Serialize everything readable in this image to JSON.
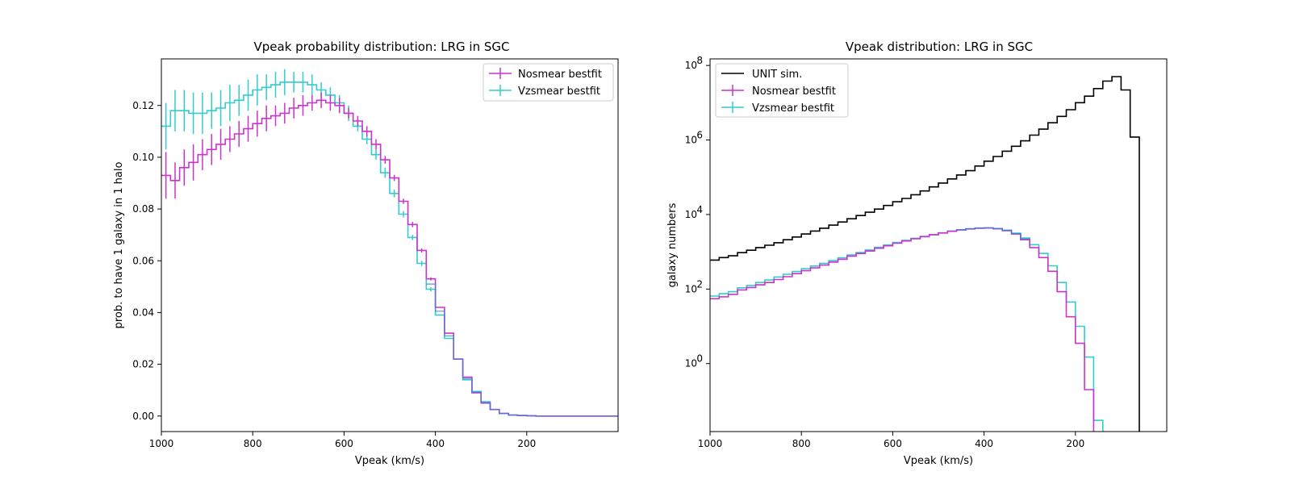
{
  "colors": {
    "nosmear": "#cc33cc",
    "vzsmear": "#33cccc",
    "unit": "#000000",
    "overlap": "#3d7fd6"
  },
  "chart_data": [
    {
      "type": "line",
      "title": "Vpeak probability distribution: LRG in SGC",
      "xlabel": "Vpeak (km/s)",
      "ylabel": "prob. to have 1 galaxy in 1 halo",
      "xlim": [
        1000,
        0
      ],
      "ylim": [
        -0.006,
        0.138
      ],
      "xticks": [
        1000,
        800,
        600,
        400,
        200
      ],
      "yticks": [
        0.0,
        0.02,
        0.04,
        0.06,
        0.08,
        0.1,
        0.12
      ],
      "ytick_labels": [
        "0.00",
        "0.02",
        "0.04",
        "0.06",
        "0.08",
        "0.10",
        "0.12"
      ],
      "legend": {
        "position": "top-right",
        "entries": [
          "Nosmear bestfit",
          "Vzsmear bestfit"
        ]
      },
      "grid": false,
      "x": [
        1000,
        980,
        960,
        940,
        920,
        900,
        880,
        860,
        840,
        820,
        800,
        780,
        760,
        740,
        720,
        700,
        680,
        660,
        640,
        620,
        600,
        580,
        560,
        540,
        520,
        500,
        480,
        460,
        440,
        420,
        400,
        380,
        360,
        340,
        320,
        300,
        280,
        260,
        240,
        220,
        200,
        180,
        160,
        140,
        120,
        100,
        80,
        60,
        40,
        20
      ],
      "series": [
        {
          "name": "Nosmear bestfit",
          "values": [
            0.093,
            0.091,
            0.096,
            0.098,
            0.101,
            0.103,
            0.105,
            0.107,
            0.109,
            0.111,
            0.113,
            0.115,
            0.116,
            0.117,
            0.119,
            0.12,
            0.121,
            0.122,
            0.121,
            0.12,
            0.117,
            0.114,
            0.11,
            0.105,
            0.099,
            0.092,
            0.083,
            0.074,
            0.064,
            0.053,
            0.042,
            0.032,
            0.022,
            0.015,
            0.009,
            0.005,
            0.0025,
            0.001,
            0.0004,
            0.0002,
            0.0001,
            0,
            0,
            0,
            0,
            0,
            0,
            0,
            0,
            0
          ],
          "errors": [
            0.009,
            0.007,
            0.007,
            0.007,
            0.006,
            0.006,
            0.006,
            0.005,
            0.005,
            0.005,
            0.005,
            0.005,
            0.004,
            0.004,
            0.004,
            0.004,
            0.003,
            0.003,
            0.003,
            0.003,
            0.002,
            0.002,
            0.002,
            0.002,
            0.0015,
            0.0012,
            0.001,
            0.001,
            0.0008,
            0.0006,
            0,
            0,
            0,
            0,
            0,
            0,
            0,
            0,
            0,
            0,
            0,
            0,
            0,
            0,
            0,
            0,
            0,
            0,
            0,
            0
          ]
        },
        {
          "name": "Vzsmear bestfit",
          "values": [
            0.112,
            0.118,
            0.118,
            0.117,
            0.117,
            0.118,
            0.119,
            0.121,
            0.122,
            0.124,
            0.126,
            0.127,
            0.128,
            0.129,
            0.129,
            0.129,
            0.128,
            0.126,
            0.124,
            0.121,
            0.117,
            0.112,
            0.107,
            0.101,
            0.094,
            0.086,
            0.078,
            0.069,
            0.059,
            0.049,
            0.039,
            0.03,
            0.022,
            0.014,
            0.0095,
            0.0055,
            0.0025,
            0.001,
            0.0004,
            0.0002,
            0.0001,
            0,
            0,
            0,
            0,
            0,
            0,
            0,
            0,
            0
          ],
          "errors": [
            0.009,
            0.008,
            0.008,
            0.008,
            0.008,
            0.007,
            0.007,
            0.007,
            0.006,
            0.006,
            0.006,
            0.005,
            0.005,
            0.005,
            0.004,
            0.004,
            0.004,
            0.003,
            0.003,
            0.003,
            0.003,
            0.002,
            0.002,
            0.002,
            0.002,
            0.0015,
            0.0012,
            0.001,
            0.001,
            0.0008,
            0,
            0,
            0,
            0,
            0,
            0,
            0,
            0,
            0,
            0,
            0,
            0,
            0,
            0,
            0,
            0,
            0,
            0,
            0,
            0
          ]
        }
      ]
    },
    {
      "type": "line",
      "title": "Vpeak distribution: LRG in SGC",
      "xlabel": "Vpeak (km/s)",
      "ylabel": "galaxy numbers",
      "xlim": [
        1000,
        0
      ],
      "ylim": [
        0.015,
        150000000
      ],
      "yscale": "log",
      "xticks": [
        1000,
        800,
        600,
        400,
        200
      ],
      "yticks": [
        1,
        100,
        10000,
        1000000,
        100000000
      ],
      "ytick_labels": [
        "10",
        "10",
        "10",
        "10",
        "10"
      ],
      "ytick_exponents": [
        "0",
        "2",
        "4",
        "6",
        "8"
      ],
      "legend": {
        "position": "top-left",
        "entries": [
          "UNIT sim.",
          "Nosmear bestfit",
          "Vzsmear bestfit"
        ]
      },
      "grid": false,
      "x": [
        1000,
        980,
        960,
        940,
        920,
        900,
        880,
        860,
        840,
        820,
        800,
        780,
        760,
        740,
        720,
        700,
        680,
        660,
        640,
        620,
        600,
        580,
        560,
        540,
        520,
        500,
        480,
        460,
        440,
        420,
        400,
        380,
        360,
        340,
        320,
        300,
        280,
        260,
        240,
        220,
        200,
        180,
        160,
        140,
        120,
        100,
        80,
        60,
        40,
        20
      ],
      "series": [
        {
          "name": "UNIT sim.",
          "values": [
            600,
            700,
            780,
            950,
            1100,
            1300,
            1500,
            1750,
            2100,
            2500,
            3000,
            3600,
            4300,
            5200,
            6300,
            7700,
            9400,
            11500,
            14000,
            17500,
            22000,
            27000,
            34000,
            43000,
            55000,
            70000,
            90000,
            115000,
            150000,
            200000,
            270000,
            360000,
            500000,
            680000,
            950000,
            1350000,
            1950000,
            2900000,
            4300000,
            6500000,
            10000000,
            15000000,
            24000000,
            38000000,
            50000000,
            22000000,
            1200000,
            0,
            0,
            0
          ]
        },
        {
          "name": "Nosmear bestfit",
          "values": [
            55,
            62,
            72,
            95,
            110,
            130,
            150,
            180,
            215,
            260,
            310,
            370,
            440,
            530,
            630,
            760,
            900,
            1050,
            1250,
            1450,
            1700,
            1950,
            2250,
            2550,
            2850,
            3200,
            3550,
            3850,
            4100,
            4300,
            4350,
            4150,
            3700,
            3000,
            2100,
            1300,
            700,
            300,
            85,
            18,
            3.5,
            0.2,
            0,
            0,
            0,
            0,
            0,
            0,
            0,
            0
          ]
        },
        {
          "name": "Vzsmear bestfit",
          "values": [
            65,
            75,
            85,
            108,
            125,
            150,
            175,
            210,
            250,
            295,
            350,
            415,
            490,
            580,
            690,
            820,
            960,
            1120,
            1320,
            1520,
            1780,
            2030,
            2300,
            2600,
            2900,
            3250,
            3600,
            3900,
            4150,
            4330,
            4380,
            4200,
            3800,
            3150,
            2350,
            1550,
            900,
            420,
            150,
            45,
            10,
            1.5,
            0.03,
            0,
            0,
            0,
            0,
            0,
            0,
            0
          ]
        }
      ]
    }
  ]
}
